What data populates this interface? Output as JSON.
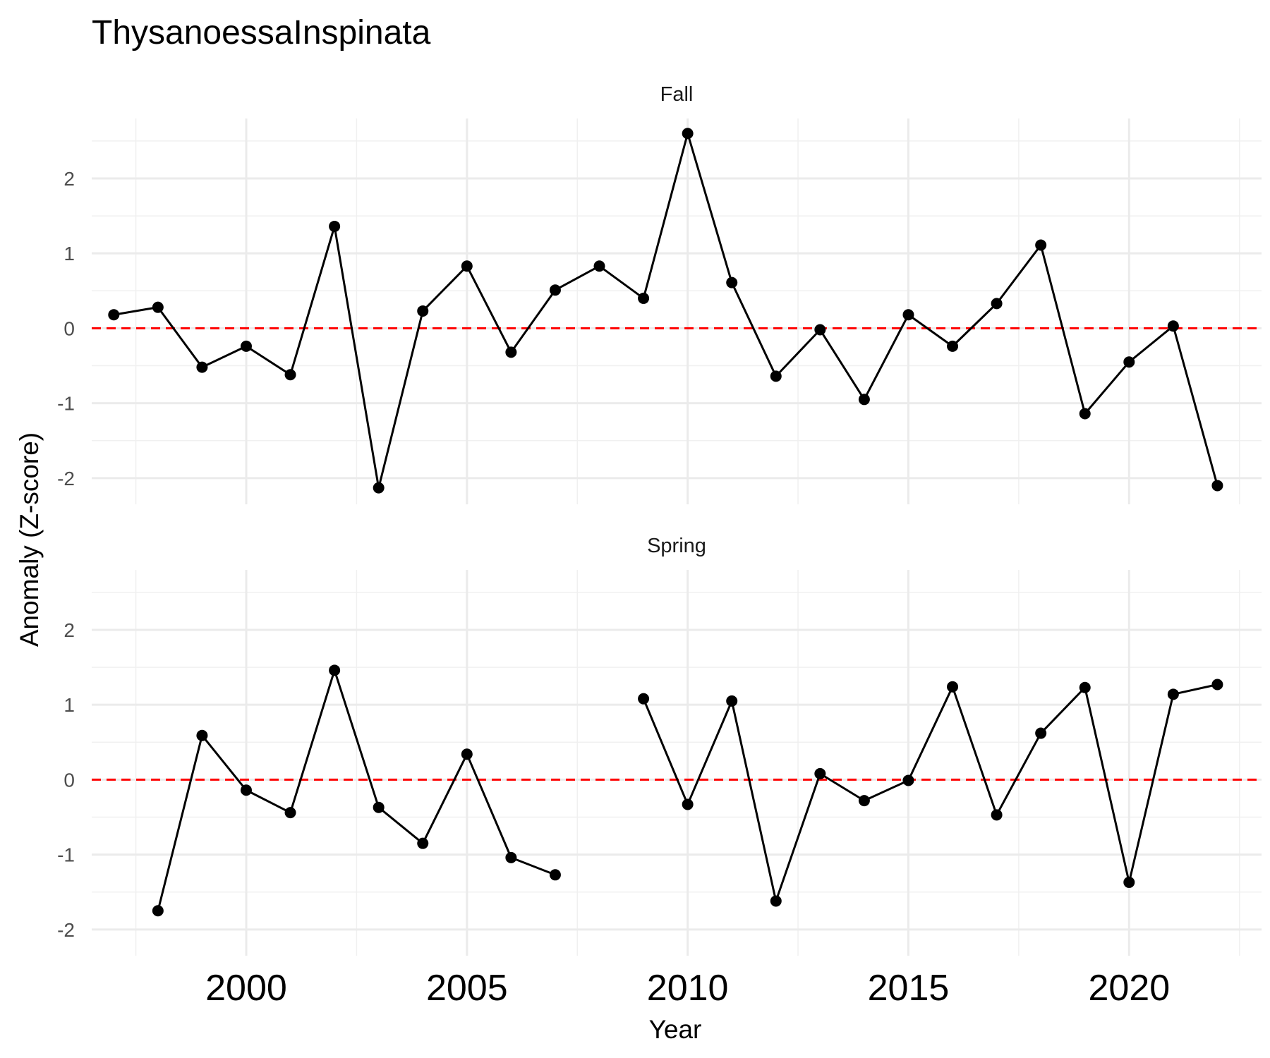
{
  "chart_data": {
    "type": "line",
    "title": "ThysanoessaInspinata",
    "xlabel": "Year",
    "ylabel": "Anomaly (Z-score)",
    "x_ticks": [
      2000,
      2005,
      2010,
      2015,
      2020
    ],
    "y_ticks": [
      2,
      1,
      0,
      -1,
      -2
    ],
    "xlim": [
      1996.5,
      2023.0
    ],
    "ylim": [
      -2.35,
      2.8
    ],
    "reference_line": {
      "y": 0,
      "style": "dashed",
      "color": "#ff0000"
    },
    "grid": true,
    "line_color": "#000000",
    "panels": [
      {
        "name": "Fall",
        "x": [
          1997,
          1998,
          1999,
          2000,
          2001,
          2002,
          2003,
          2004,
          2005,
          2006,
          2007,
          2008,
          2009,
          2010,
          2011,
          2012,
          2013,
          2014,
          2015,
          2016,
          2017,
          2018,
          2019,
          2020,
          2021,
          2022
        ],
        "y": [
          0.18,
          0.28,
          -0.52,
          -0.24,
          -0.62,
          1.36,
          -2.13,
          0.23,
          0.83,
          -0.32,
          0.51,
          0.83,
          0.4,
          2.6,
          0.61,
          -0.64,
          -0.02,
          -0.95,
          0.18,
          -0.24,
          0.33,
          1.11,
          -1.14,
          -0.45,
          0.03,
          -2.1
        ]
      },
      {
        "name": "Spring",
        "x": [
          1998,
          1999,
          2000,
          2001,
          2002,
          2003,
          2004,
          2005,
          2006,
          2007,
          2008,
          2009,
          2010,
          2011,
          2012,
          2013,
          2014,
          2015,
          2016,
          2017,
          2018,
          2019,
          2020,
          2021,
          2022
        ],
        "y": [
          -1.75,
          0.59,
          -0.14,
          -0.44,
          1.46,
          -0.37,
          -0.85,
          0.34,
          -1.04,
          -1.27,
          null,
          1.08,
          -0.33,
          1.05,
          -1.62,
          0.08,
          -0.28,
          -0.01,
          1.24,
          -0.47,
          0.62,
          1.23,
          -1.37,
          1.14,
          1.27
        ]
      }
    ]
  }
}
